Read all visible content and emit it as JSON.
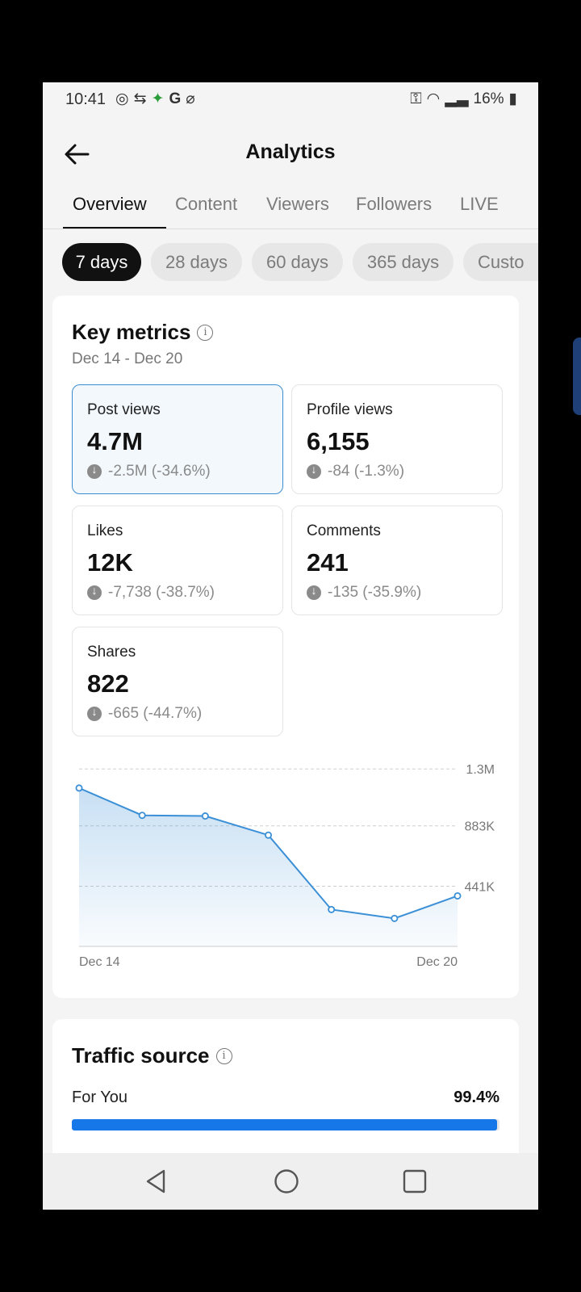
{
  "status_bar": {
    "time": "10:41",
    "battery": "16%"
  },
  "header": {
    "title": "Analytics"
  },
  "tabs": [
    {
      "label": "Overview",
      "active": true
    },
    {
      "label": "Content"
    },
    {
      "label": "Viewers"
    },
    {
      "label": "Followers"
    },
    {
      "label": "LIVE"
    }
  ],
  "ranges": [
    {
      "label": "7 days",
      "active": true
    },
    {
      "label": "28 days"
    },
    {
      "label": "60 days"
    },
    {
      "label": "365 days"
    },
    {
      "label": "Custo"
    }
  ],
  "key_metrics": {
    "title": "Key metrics",
    "date_range": "Dec 14 - Dec 20",
    "metrics": [
      {
        "label": "Post views",
        "value": "4.7M",
        "delta": "-2.5M (-34.6%)",
        "selected": true
      },
      {
        "label": "Profile views",
        "value": "6,155",
        "delta": "-84 (-1.3%)"
      },
      {
        "label": "Likes",
        "value": "12K",
        "delta": "-7,738 (-38.7%)"
      },
      {
        "label": "Comments",
        "value": "241",
        "delta": "-135 (-35.9%)"
      },
      {
        "label": "Shares",
        "value": "822",
        "delta": "-665 (-44.7%)"
      }
    ]
  },
  "chart_data": {
    "type": "area",
    "x": [
      "Dec 14",
      "Dec 15",
      "Dec 16",
      "Dec 17",
      "Dec 18",
      "Dec 19",
      "Dec 20"
    ],
    "x_tick_labels": [
      "Dec 14",
      "Dec 20"
    ],
    "y_tick_labels": [
      "1.3M",
      "883K",
      "441K"
    ],
    "y_ticks": [
      1300000,
      883000,
      441000
    ],
    "ylim": [
      0,
      1325000
    ],
    "series": [
      {
        "values": [
          1160000,
          960000,
          955000,
          815000,
          270000,
          205000,
          370000
        ]
      }
    ],
    "grid": true,
    "color": "#3a8fd6"
  },
  "traffic_source": {
    "title": "Traffic source",
    "items": [
      {
        "label": "For You",
        "percent": "99.4%",
        "fraction": 0.994
      }
    ]
  }
}
